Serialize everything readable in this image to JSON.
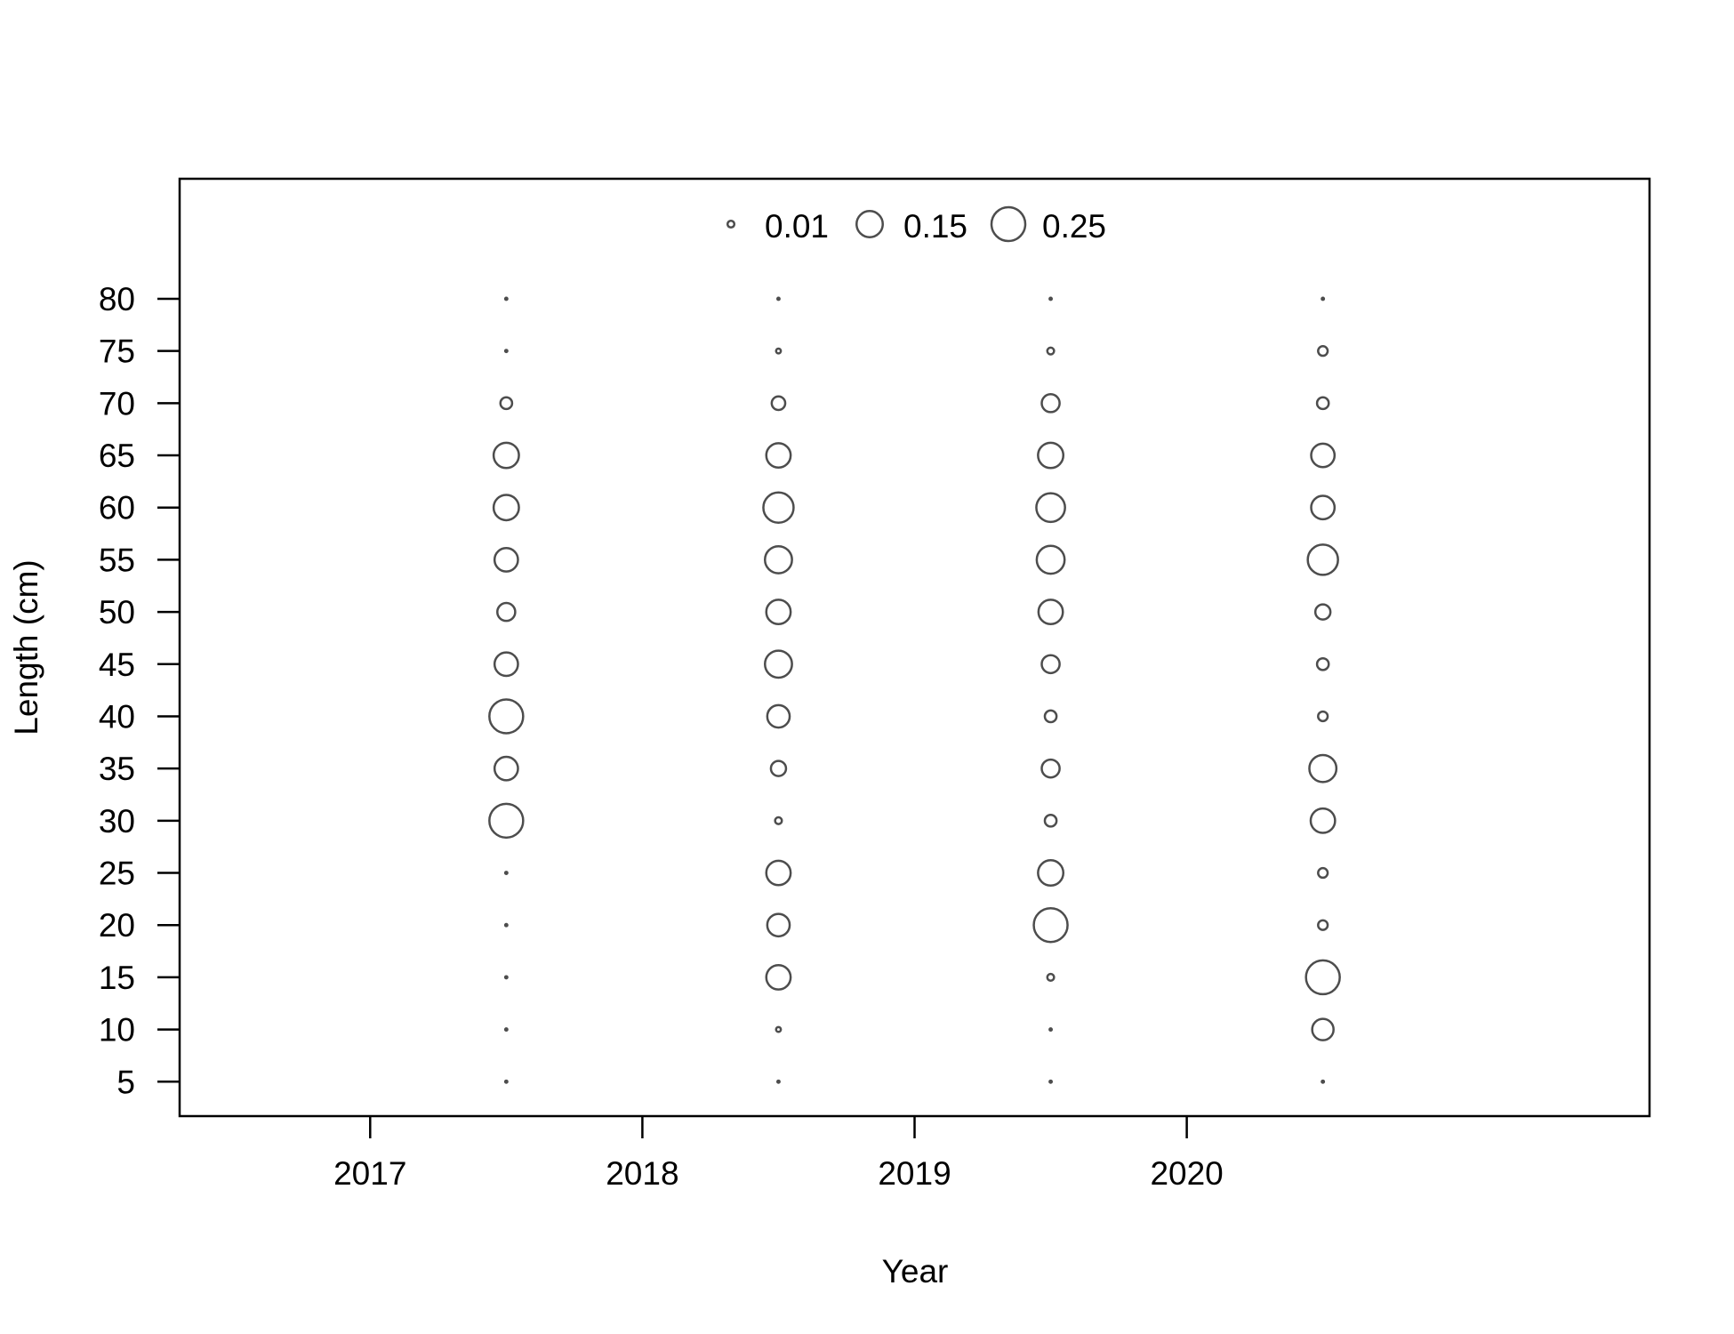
{
  "chart_data": {
    "type": "scatter",
    "subtype": "bubble",
    "xlabel": "Year",
    "ylabel": "Length (cm)",
    "x_ticks": [
      2017,
      2018,
      2019,
      2020
    ],
    "y_ticks": [
      5,
      10,
      15,
      20,
      25,
      30,
      35,
      40,
      45,
      50,
      55,
      60,
      65,
      70,
      75,
      80
    ],
    "xlim": [
      2016.3,
      2021.7
    ],
    "ylim": [
      1.7,
      91.5
    ],
    "grid": false,
    "legend": {
      "placement": "top-center",
      "entries": [
        {
          "value": 0.01,
          "label": "0.01"
        },
        {
          "value": 0.15,
          "label": "0.15"
        },
        {
          "value": 0.25,
          "label": "0.25"
        }
      ]
    },
    "bubble_color": "#4d4d4d",
    "lengths": [
      5,
      10,
      15,
      20,
      25,
      30,
      35,
      40,
      45,
      50,
      55,
      60,
      65,
      70,
      75,
      80
    ],
    "series": [
      {
        "x": 2017.5,
        "values": [
          0.001,
          0.001,
          0.001,
          0.001,
          0.001,
          0.25,
          0.12,
          0.25,
          0.12,
          0.07,
          0.12,
          0.14,
          0.14,
          0.03,
          0.001,
          0.001
        ]
      },
      {
        "x": 2018.5,
        "values": [
          0.001,
          0.005,
          0.13,
          0.11,
          0.13,
          0.01,
          0.05,
          0.11,
          0.16,
          0.13,
          0.16,
          0.2,
          0.13,
          0.04,
          0.005,
          0.001
        ]
      },
      {
        "x": 2019.5,
        "values": [
          0.001,
          0.001,
          0.01,
          0.25,
          0.14,
          0.03,
          0.07,
          0.03,
          0.07,
          0.13,
          0.17,
          0.18,
          0.14,
          0.07,
          0.01,
          0.001
        ]
      },
      {
        "x": 2020.5,
        "values": [
          0.001,
          0.1,
          0.25,
          0.02,
          0.02,
          0.13,
          0.16,
          0.02,
          0.03,
          0.05,
          0.2,
          0.12,
          0.12,
          0.03,
          0.02,
          0.001
        ]
      }
    ]
  }
}
